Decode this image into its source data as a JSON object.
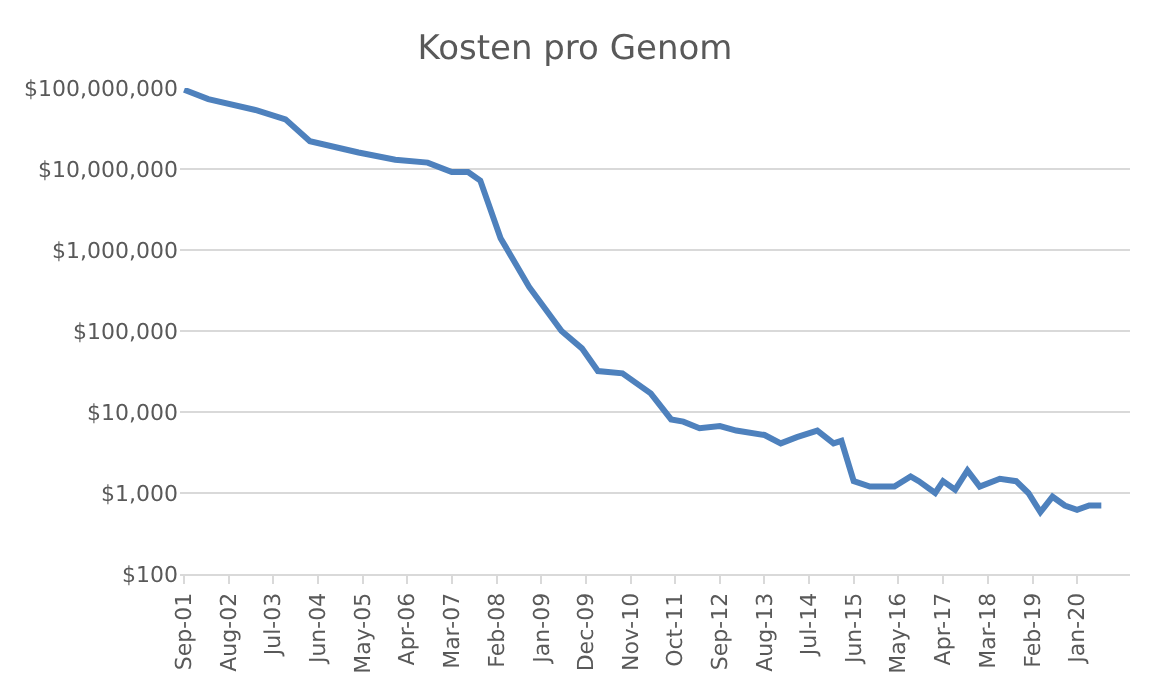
{
  "chart_data": {
    "type": "line",
    "title": "Kosten pro Genom",
    "x": [
      "2001-09",
      "2002-03",
      "2003-03",
      "2003-10",
      "2004-04",
      "2005-04",
      "2006-01",
      "2006-09",
      "2007-03",
      "2007-07",
      "2007-10",
      "2008-03",
      "2008-10",
      "2009-06",
      "2009-11",
      "2010-03",
      "2010-09",
      "2011-04",
      "2011-09",
      "2011-12",
      "2012-04",
      "2012-09",
      "2013-01",
      "2013-08",
      "2013-12",
      "2014-04",
      "2014-09",
      "2015-01",
      "2015-03",
      "2015-06",
      "2015-10",
      "2016-04",
      "2016-08",
      "2016-10",
      "2017-02",
      "2017-04",
      "2017-07",
      "2017-10",
      "2018-01",
      "2018-06",
      "2018-10",
      "2019-01",
      "2019-04",
      "2019-07",
      "2019-10",
      "2020-01",
      "2020-04",
      "2020-07"
    ],
    "series": [
      {
        "color": "#4e81bd",
        "values": [
          95000000,
          73000000,
          53000000,
          41000000,
          22000000,
          16000000,
          13000000,
          12000000,
          9200000,
          9200000,
          7200000,
          1400000,
          350000,
          100000,
          61000,
          32000,
          30000,
          17000,
          8100,
          7600,
          6300,
          6700,
          5900,
          5200,
          4100,
          4900,
          5900,
          4100,
          4400,
          1400,
          1200,
          1200,
          1600,
          1400,
          1000,
          1400,
          1100,
          1900,
          1200,
          1500,
          1400,
          1000,
          580,
          900,
          700,
          620,
          700,
          700
        ]
      }
    ],
    "log": "y",
    "ylim": [
      100,
      100000000
    ],
    "yticks": [
      {
        "value": 100,
        "label": "$100"
      },
      {
        "value": 1000,
        "label": "$1,000"
      },
      {
        "value": 10000,
        "label": "$10,000"
      },
      {
        "value": 100000,
        "label": "$100,000"
      },
      {
        "value": 1000000,
        "label": "$1,000,000"
      },
      {
        "value": 10000000,
        "label": "$10,000,000"
      },
      {
        "value": 100000000,
        "label": "$100,000,000"
      }
    ],
    "xlim": [
      "2001-08",
      "2021-02"
    ],
    "xticks": [
      {
        "value": "2001-09",
        "label": "Sep-01"
      },
      {
        "value": "2002-08",
        "label": "Aug-02"
      },
      {
        "value": "2003-07",
        "label": "Jul-03"
      },
      {
        "value": "2004-06",
        "label": "Jun-04"
      },
      {
        "value": "2005-05",
        "label": "May-05"
      },
      {
        "value": "2006-04",
        "label": "Apr-06"
      },
      {
        "value": "2007-03",
        "label": "Mar-07"
      },
      {
        "value": "2008-02",
        "label": "Feb-08"
      },
      {
        "value": "2009-01",
        "label": "Jan-09"
      },
      {
        "value": "2009-12",
        "label": "Dec-09"
      },
      {
        "value": "2010-11",
        "label": "Nov-10"
      },
      {
        "value": "2011-10",
        "label": "Oct-11"
      },
      {
        "value": "2012-09",
        "label": "Sep-12"
      },
      {
        "value": "2013-08",
        "label": "Aug-13"
      },
      {
        "value": "2014-07",
        "label": "Jul-14"
      },
      {
        "value": "2015-06",
        "label": "Jun-15"
      },
      {
        "value": "2016-05",
        "label": "May-16"
      },
      {
        "value": "2017-04",
        "label": "Apr-17"
      },
      {
        "value": "2018-03",
        "label": "Mar-18"
      },
      {
        "value": "2019-02",
        "label": "Feb-19"
      },
      {
        "value": "2020-01",
        "label": "Jan-20"
      }
    ],
    "grid": "y",
    "marker": "none",
    "line_style": "solid"
  }
}
